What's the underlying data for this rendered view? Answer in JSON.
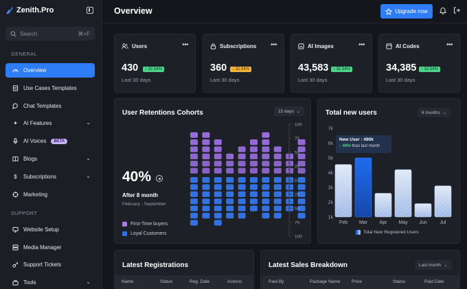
{
  "sidebar": {
    "brand": "Zenith.Pro",
    "search_placeholder": "Search",
    "search_shortcut": "⌘+F",
    "general_label": "GENERAL",
    "support_label": "SUPPORT",
    "items": [
      {
        "label": "Overview",
        "icon": "gauge-icon"
      },
      {
        "label": "Use Cases Templates",
        "icon": "document-icon"
      },
      {
        "label": "Chat Templates",
        "icon": "chat-bubble-icon"
      },
      {
        "label": "AI Features",
        "icon": "sparkle-icon"
      },
      {
        "label": "AI Voices",
        "icon": "microphone-icon",
        "badge": "BETA"
      },
      {
        "label": "Blogs",
        "icon": "book-icon"
      },
      {
        "label": "Subscriptions",
        "icon": "dollar-icon"
      },
      {
        "label": "Marketing",
        "icon": "target-icon"
      },
      {
        "label": "Website Setup",
        "icon": "monitor-icon"
      },
      {
        "label": "Media Manager",
        "icon": "server-icon"
      },
      {
        "label": "Support Tickets",
        "icon": "key-icon"
      },
      {
        "label": "Tools",
        "icon": "toolbox-icon"
      }
    ]
  },
  "header": {
    "title": "Overview",
    "upgrade_label": "Upgrade now"
  },
  "stats": [
    {
      "label": "Users",
      "icon": "users-icon",
      "value": "430",
      "change": "↑ 32.54%",
      "trend": "up",
      "period": "Last 30 days"
    },
    {
      "label": "Subscriptions",
      "icon": "lock-icon",
      "value": "360",
      "change": "↓ 32.54%",
      "trend": "down",
      "period": "Last 30 days"
    },
    {
      "label": "AI Images",
      "icon": "image-icon",
      "value": "43,583",
      "change": "↑ 32.54%",
      "trend": "up",
      "period": "Last 30 days"
    },
    {
      "label": "AI Codes",
      "icon": "code-box-icon",
      "value": "34,385",
      "change": "↑ 32.54%",
      "trend": "up",
      "period": "Last 30 days"
    }
  ],
  "retention": {
    "title": "User Retentions Cohorts",
    "filter": "15 days",
    "percent": "40%",
    "caption": "After 8 month",
    "range": "February - September",
    "legend": [
      "First-Time buyers",
      "Loyal Customers"
    ],
    "axis_ticks": [
      "100",
      "75",
      "50",
      "25",
      "0",
      "25",
      "50",
      "75",
      "100"
    ],
    "colors": {
      "first_time": "#9b6fe0",
      "loyal": "#2f6fe0"
    }
  },
  "new_users": {
    "title": "Total new users",
    "filter": "6 months",
    "tooltip_title": "New User : 490k",
    "tooltip_change": "↑ 49%",
    "tooltip_suffix": "than last month",
    "legend": "Total New Registered Users"
  },
  "chart_data": {
    "type": "bar",
    "categories": [
      "Feb",
      "Mar",
      "Apr",
      "May",
      "Jun",
      "Jul"
    ],
    "series": [
      {
        "name": "Total New Registered Users",
        "values": [
          3.55,
          4.0,
          1.6,
          3.2,
          0.9,
          2.1
        ]
      }
    ],
    "yticks": [
      "1k",
      "2k",
      "3k",
      "4k",
      "5k",
      "6k",
      "7k"
    ],
    "ylim": [
      1,
      7
    ],
    "highlight_index": 1
  },
  "registrations": {
    "title": "Latest Registrations",
    "columns": [
      "Name",
      "Status",
      "Reg. Date",
      "Actions"
    ]
  },
  "sales": {
    "title": "Latest Sales Breakdown",
    "filter": "Last month",
    "columns": [
      "Paid By",
      "Package Name",
      "Price",
      "Status",
      "Paid Date"
    ]
  }
}
